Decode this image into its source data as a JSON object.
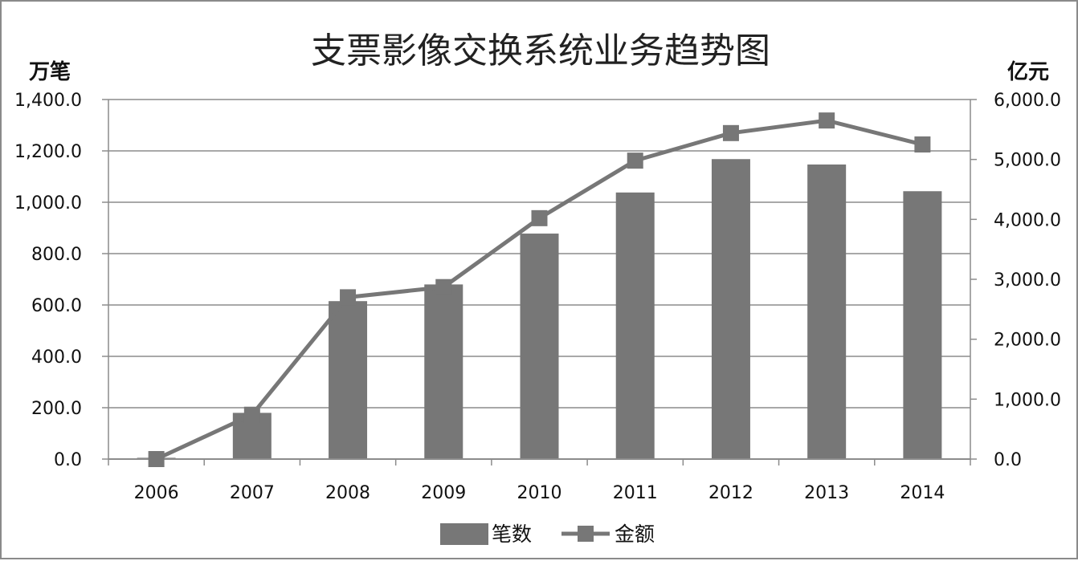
{
  "chart_data": {
    "type": "bar+line",
    "title": "支票影像交换系统业务趋势图",
    "categories": [
      "2006",
      "2007",
      "2008",
      "2009",
      "2010",
      "2011",
      "2012",
      "2013",
      "2014"
    ],
    "series": [
      {
        "name": "笔数",
        "type": "bar",
        "axis": "left",
        "color": "#777777",
        "values": [
          5,
          180,
          615,
          680,
          878,
          1038,
          1168,
          1147,
          1043
        ]
      },
      {
        "name": "金额",
        "type": "line",
        "axis": "right",
        "color": "#777777",
        "values": [
          0,
          740,
          2700,
          2870,
          4020,
          4980,
          5440,
          5650,
          5250
        ]
      }
    ],
    "y_left": {
      "unit": "万笔",
      "range": [
        0,
        1400
      ],
      "ticks": [
        "1,400.0",
        "1,200.0",
        "1,000.0",
        "800.0",
        "600.0",
        "400.0",
        "200.0",
        "0.0"
      ]
    },
    "y_right": {
      "unit": "亿元",
      "range": [
        0,
        6000
      ],
      "ticks": [
        "6,000.0",
        "5,000.0",
        "4,000.0",
        "3,000.0",
        "2,000.0",
        "1,000.0",
        "0.0"
      ]
    },
    "grid": true,
    "legend_position": "bottom"
  }
}
